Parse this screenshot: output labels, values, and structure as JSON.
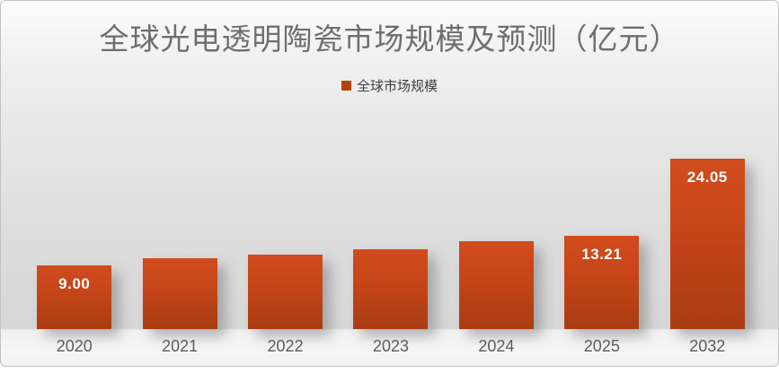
{
  "chart": {
    "title": "全球光电透明陶瓷市场规模及预测（亿元）",
    "legend": {
      "label": "全球市场规模",
      "swatch_color": "#b8420f"
    },
    "colors": {
      "bar_gradient_top": "#d14c1d",
      "bar_gradient_bottom": "#a93c12",
      "data_label_text": "#ffffff",
      "axis_text": "#5c5c5c",
      "title_text": "#6e6e6e",
      "background_mid": "#d7d7d7"
    }
  },
  "chart_data": {
    "type": "bar",
    "title": "全球光电透明陶瓷市场规模及预测（亿元）",
    "unit": "亿元",
    "categories": [
      "2020",
      "2021",
      "2022",
      "2023",
      "2024",
      "2025",
      "2032"
    ],
    "values": [
      9.0,
      9.95,
      10.55,
      11.3,
      12.45,
      13.21,
      24.05
    ],
    "data_labels": [
      "9.00",
      "",
      "",
      "",
      "",
      "13.21",
      "24.05"
    ],
    "legend": [
      "全球市场规模"
    ],
    "legend_position": "top-center",
    "ylim": [
      0,
      26
    ],
    "grid": false,
    "xlabel": "",
    "ylabel": ""
  }
}
